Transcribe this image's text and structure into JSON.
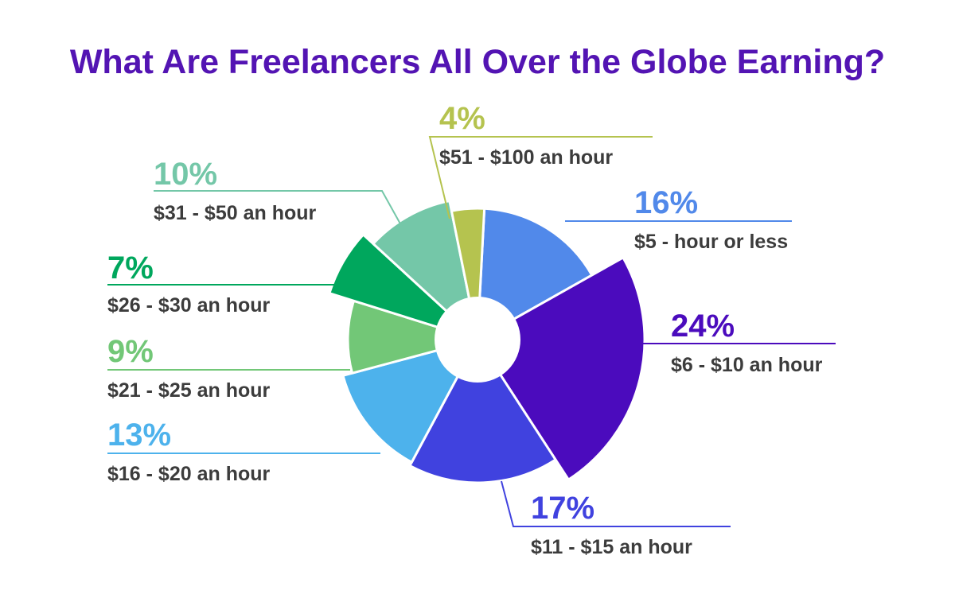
{
  "chart_data": {
    "type": "pie",
    "title": "What Are Freelancers All Over the Globe Earning?",
    "slices": [
      {
        "label": "$5 - hour or less",
        "pct_label": "16%",
        "value": 16,
        "color": "#5189ea"
      },
      {
        "label": "$6 - $10 an hour",
        "pct_label": "24%",
        "value": 24,
        "color": "#4b0bbd"
      },
      {
        "label": "$11 - $15 an hour",
        "pct_label": "17%",
        "value": 17,
        "color": "#4042df"
      },
      {
        "label": "$16 - $20 an hour",
        "pct_label": "13%",
        "value": 13,
        "color": "#4db2ec"
      },
      {
        "label": "$21 - $25 an hour",
        "pct_label": "9%",
        "value": 9,
        "color": "#72c777"
      },
      {
        "label": "$26 - $30 an hour",
        "pct_label": "7%",
        "value": 7,
        "color": "#00a75d"
      },
      {
        "label": "$31 - $50 an hour",
        "pct_label": "10%",
        "value": 10,
        "color": "#74c7a8"
      },
      {
        "label": "$51 - $100 an hour",
        "pct_label": "4%",
        "value": 4,
        "color": "#b5c34f"
      }
    ]
  }
}
